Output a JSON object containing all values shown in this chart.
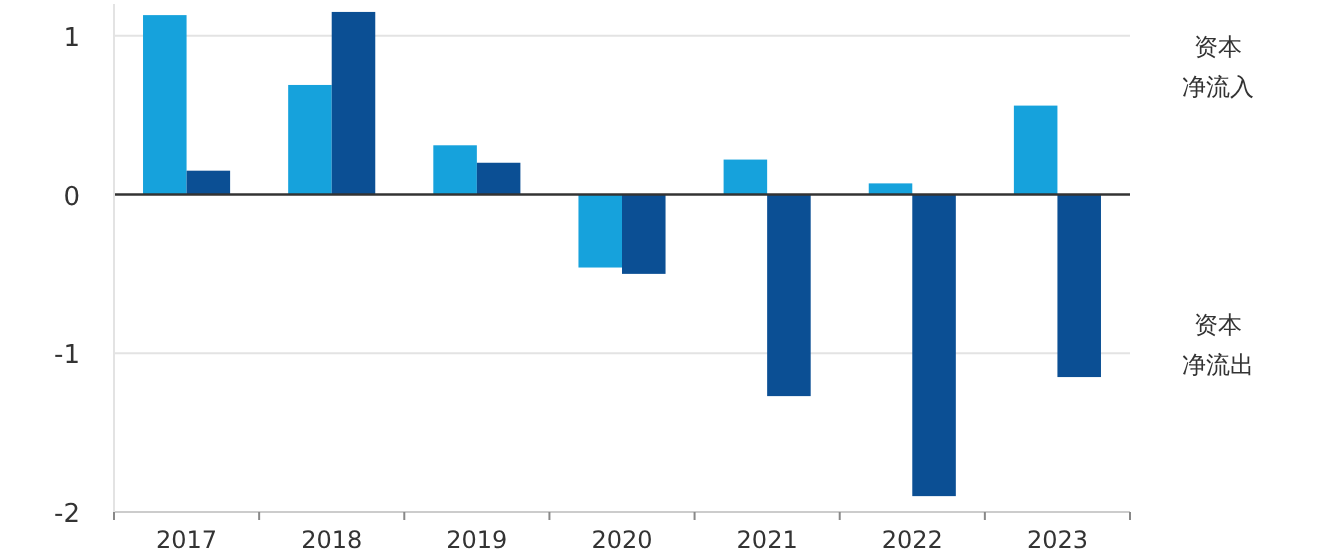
{
  "chart_data": {
    "type": "bar",
    "categories": [
      "2017",
      "2018",
      "2019",
      "2020",
      "2021",
      "2022",
      "2023"
    ],
    "series": [
      {
        "color": "#16a2dc",
        "values": [
          1.13,
          0.69,
          0.31,
          -0.46,
          0.22,
          0.07,
          0.56
        ]
      },
      {
        "color": "#0b4f94",
        "values": [
          0.15,
          1.15,
          0.2,
          -0.5,
          -1.27,
          -1.9,
          -1.15
        ]
      }
    ],
    "ylim": [
      -2,
      1.2
    ],
    "yticks": [
      -2,
      -1,
      0,
      1
    ],
    "grid": "y",
    "annotations": [
      "资本净流入",
      "资本净流出"
    ]
  }
}
